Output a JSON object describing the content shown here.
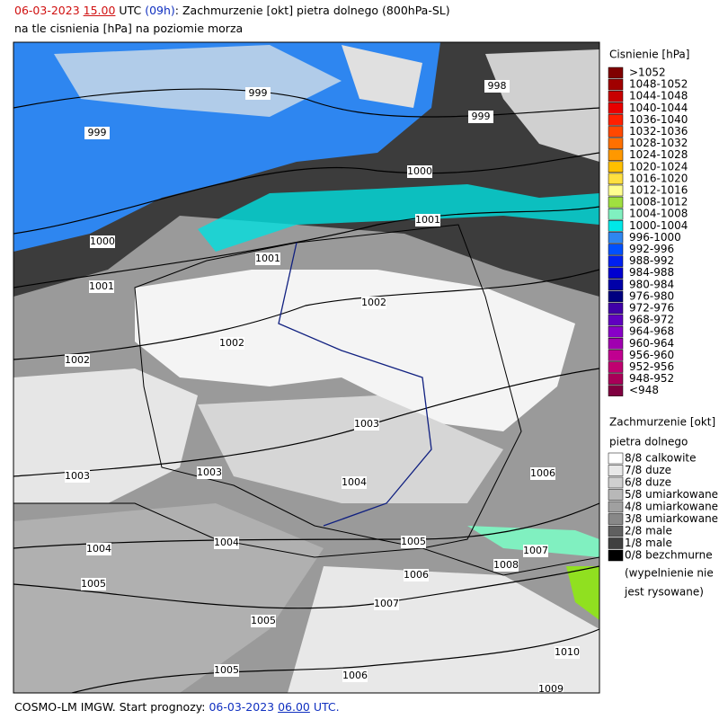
{
  "header": {
    "date": "06-03-2023",
    "hour": "15.00",
    "zone": "UTC",
    "lead": "(09h)",
    "title": ": Zachmurzenie [okt] pietra dolnego (800hPa-SL)",
    "subtitle": "na tle cisnienia [hPa] na poziomie morza"
  },
  "pressure_legend": {
    "title": "Cisnienie [hPa]",
    "items": [
      {
        "label": ">1052",
        "color": "#800000"
      },
      {
        "label": "1048-1052",
        "color": "#a00000"
      },
      {
        "label": "1044-1048",
        "color": "#c80000"
      },
      {
        "label": "1040-1044",
        "color": "#e80000"
      },
      {
        "label": "1036-1040",
        "color": "#ff2000"
      },
      {
        "label": "1032-1036",
        "color": "#ff4800"
      },
      {
        "label": "1028-1032",
        "color": "#ff7000"
      },
      {
        "label": "1024-1028",
        "color": "#ff9800"
      },
      {
        "label": "1020-1024",
        "color": "#ffc000"
      },
      {
        "label": "1016-1020",
        "color": "#ffe040"
      },
      {
        "label": "1012-1016",
        "color": "#ffff90"
      },
      {
        "label": "1008-1012",
        "color": "#a0e040"
      },
      {
        "label": "1004-1008",
        "color": "#80f0c0"
      },
      {
        "label": "1000-1004",
        "color": "#00e8e8"
      },
      {
        "label": "996-1000",
        "color": "#2e86f0"
      },
      {
        "label": "992-996",
        "color": "#0050ff"
      },
      {
        "label": "988-992",
        "color": "#0020f0"
      },
      {
        "label": "984-988",
        "color": "#0000d0"
      },
      {
        "label": "980-984",
        "color": "#0000a8"
      },
      {
        "label": "976-980",
        "color": "#000080"
      },
      {
        "label": "972-976",
        "color": "#4000a8"
      },
      {
        "label": "968-972",
        "color": "#6000c0"
      },
      {
        "label": "964-968",
        "color": "#8800c8"
      },
      {
        "label": "960-964",
        "color": "#a000b0"
      },
      {
        "label": "956-960",
        "color": "#c00090"
      },
      {
        "label": "952-956",
        "color": "#c00070"
      },
      {
        "label": "948-952",
        "color": "#a80058"
      },
      {
        "label": "<948",
        "color": "#800040"
      }
    ]
  },
  "cloud_legend": {
    "title": "Zachmurzenie [okt]",
    "subtitle": "pietra dolnego",
    "items": [
      {
        "label": "8/8 calkowite",
        "color": "#ffffff"
      },
      {
        "label": "7/8 duze",
        "color": "#e8e8e8"
      },
      {
        "label": "6/8 duze",
        "color": "#d0d0d0"
      },
      {
        "label": "5/8 umiarkowane",
        "color": "#b8b8b8"
      },
      {
        "label": "4/8 umiarkowane",
        "color": "#a0a0a0"
      },
      {
        "label": "3/8 umiarkowane",
        "color": "#888888"
      },
      {
        "label": "2/8 male",
        "color": "#606060"
      },
      {
        "label": "1/8 male",
        "color": "#404040"
      },
      {
        "label": "0/8 bezchmurne",
        "color": "#000000"
      }
    ],
    "note": [
      "(wypelnienie nie",
      "jest rysowane)"
    ]
  },
  "isobar_labels": [
    999,
    998,
    999,
    999,
    1000,
    1001,
    1000,
    1001,
    1001,
    1002,
    1002,
    1002,
    1003,
    1003,
    1003,
    1004,
    1006,
    1004,
    1004,
    1005,
    1007,
    1008,
    1006,
    1005,
    1007,
    1005,
    1010,
    1005,
    1006,
    1009
  ],
  "footer": {
    "text": "COSMO-LM IMGW. Start prognozy:",
    "date": "06-03-2023",
    "hour": "06.00",
    "zone": "UTC."
  }
}
